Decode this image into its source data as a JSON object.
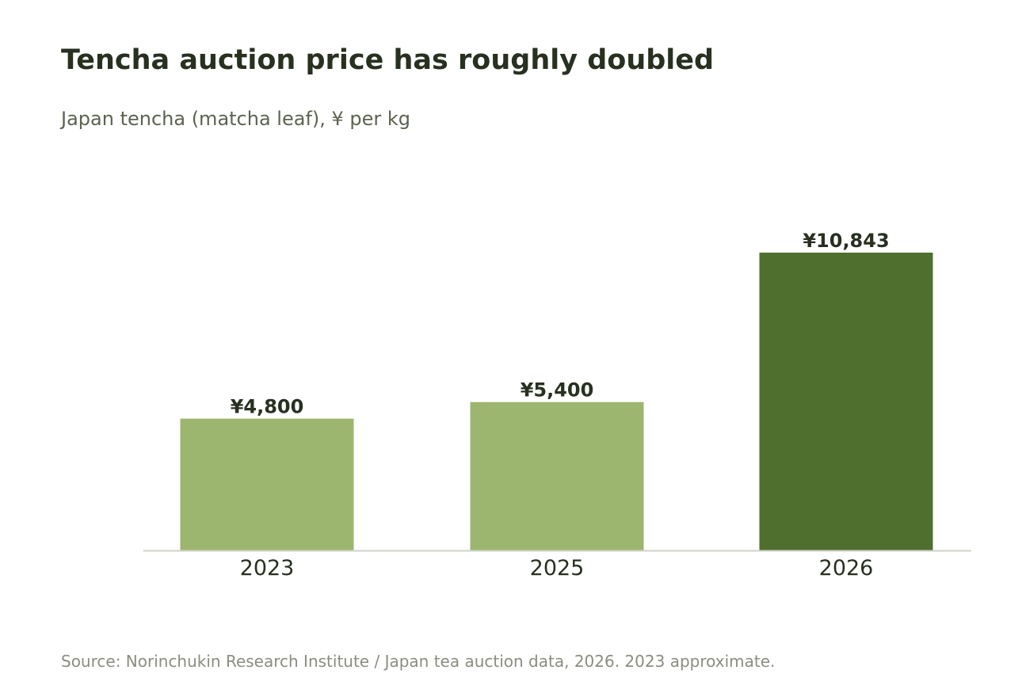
{
  "header": {
    "title": "Tencha auction price has roughly doubled",
    "subtitle": "Japan tencha (matcha leaf), ¥ per kg"
  },
  "footer": {
    "source": "Source: Norinchukin Research Institute / Japan tea auction data, 2026. 2023 approximate."
  },
  "colors": {
    "bar_light": "#9db66f",
    "bar_highlight": "#4f6f2e",
    "baseline": "#d0d2c8",
    "text_dark": "#283020"
  },
  "chart_data": {
    "type": "bar",
    "categories": [
      "2023",
      "2025",
      "2026"
    ],
    "values": [
      4800,
      5400,
      10843
    ],
    "value_labels": [
      "¥4,800",
      "¥5,400",
      "¥10,843"
    ],
    "highlight": [
      false,
      false,
      true
    ],
    "title": "Tencha auction price has roughly doubled",
    "subtitle": "Japan tencha (matcha leaf), ¥ per kg",
    "xlabel": "",
    "ylabel": "",
    "ylim": [
      0,
      12000
    ],
    "grid": false,
    "legend": "none"
  }
}
